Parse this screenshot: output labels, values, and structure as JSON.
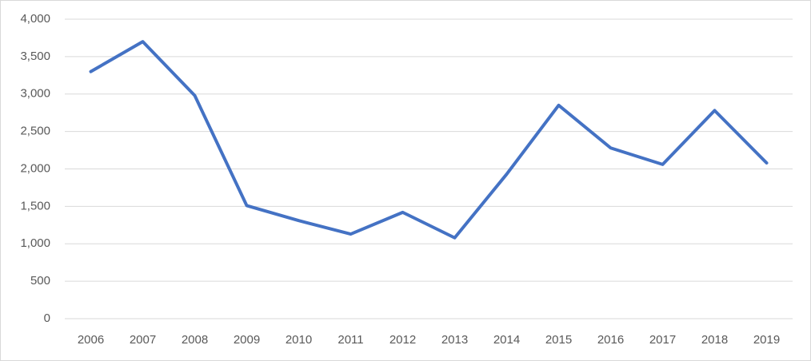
{
  "chart_data": {
    "type": "line",
    "categories": [
      "2006",
      "2007",
      "2008",
      "2009",
      "2010",
      "2011",
      "2012",
      "2013",
      "2014",
      "2015",
      "2016",
      "2017",
      "2018",
      "2019"
    ],
    "values": [
      3300,
      3700,
      2980,
      1510,
      1310,
      1130,
      1420,
      1080,
      1930,
      2850,
      2280,
      2060,
      2780,
      2080
    ],
    "color": "#4472c4",
    "ylim": [
      0,
      4000
    ],
    "yticks": [
      0,
      500,
      {
        "value": 1000,
        "label": "1,000"
      },
      {
        "value": 1500,
        "label": "1,500"
      },
      {
        "value": 2000,
        "label": "2,000"
      },
      {
        "value": 2500,
        "label": "2,500"
      },
      {
        "value": 3000,
        "label": "3,000"
      },
      {
        "value": 3500,
        "label": "3,500"
      },
      {
        "value": 4000,
        "label": "4,000"
      }
    ],
    "grid": true
  }
}
